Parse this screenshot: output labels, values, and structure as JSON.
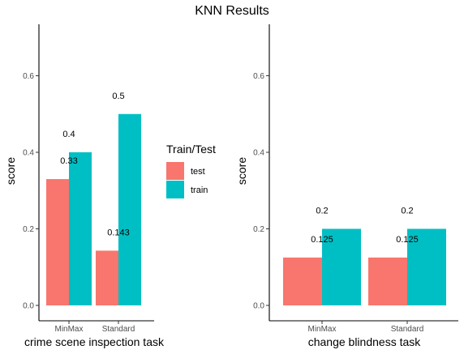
{
  "title": "KNN Results",
  "legend": {
    "title": "Train/Test",
    "entries": [
      {
        "name": "test",
        "color": "#F8766D"
      },
      {
        "name": "train",
        "color": "#00BFC4"
      }
    ]
  },
  "chart_data": [
    {
      "type": "bar",
      "title": "",
      "xlabel": "crime scene inspection task",
      "ylabel": "score",
      "ylim": [
        0,
        0.7
      ],
      "yticks": [
        "0.0",
        "0.2",
        "0.4",
        "0.6"
      ],
      "categories": [
        "MinMax",
        "Standard"
      ],
      "series": [
        {
          "name": "test",
          "values": [
            0.33,
            0.143
          ],
          "labels": [
            "0.33",
            "0.143"
          ]
        },
        {
          "name": "train",
          "values": [
            0.4,
            0.5
          ],
          "labels": [
            "0.4",
            "0.5"
          ]
        }
      ]
    },
    {
      "type": "bar",
      "title": "",
      "xlabel": "change blindness task",
      "ylabel": "score",
      "ylim": [
        0,
        0.7
      ],
      "yticks": [
        "0.0",
        "0.2",
        "0.4",
        "0.6"
      ],
      "categories": [
        "MinMax",
        "Standard"
      ],
      "series": [
        {
          "name": "test",
          "values": [
            0.125,
            0.125
          ],
          "labels": [
            "0.125",
            "0.125"
          ]
        },
        {
          "name": "train",
          "values": [
            0.2,
            0.2
          ],
          "labels": [
            "0.2",
            "0.2"
          ]
        }
      ]
    }
  ]
}
